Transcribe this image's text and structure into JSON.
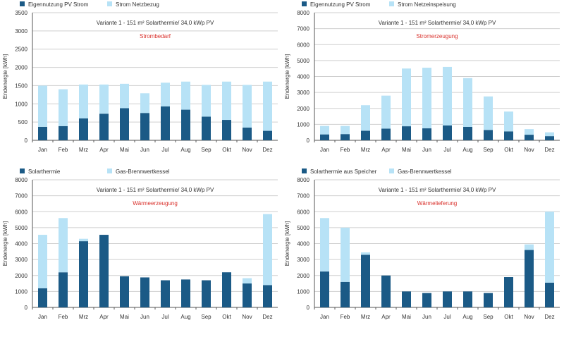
{
  "colors": {
    "dark": "#1b5a86",
    "light": "#b7e2f6",
    "grid": "#cfcfcf",
    "axis": "#555555",
    "subtitle": "#d9302b",
    "text": "#333333"
  },
  "months": [
    "Jan",
    "Feb",
    "Mrz",
    "Apr",
    "Mai",
    "Jun",
    "Jul",
    "Aug",
    "Sep",
    "Okt",
    "Nov",
    "Dez"
  ],
  "chart_data": [
    {
      "type": "bar",
      "stacked": true,
      "title": "Variante 1 - 151 m² Solarthermie/ 34,0 kWp PV",
      "subtitle": "Strombedarf",
      "ylabel": "Endenergie [kWh]",
      "ylim": [
        0,
        3500
      ],
      "yticks": [
        "0",
        "500",
        "1000",
        "1500",
        "2000",
        "2500",
        "3000",
        "3500"
      ],
      "grid": true,
      "legend_position": "top-left",
      "categories": [
        "Jan",
        "Feb",
        "Mrz",
        "Apr",
        "Mai",
        "Jun",
        "Jul",
        "Aug",
        "Sep",
        "Okt",
        "Nov",
        "Dez"
      ],
      "series": [
        {
          "name": "Eigennutzung PV Strom",
          "values": [
            370,
            390,
            600,
            730,
            880,
            750,
            930,
            840,
            650,
            560,
            350,
            260
          ]
        },
        {
          "name": "Strom Netzbezug",
          "values": [
            1130,
            1010,
            930,
            800,
            670,
            540,
            650,
            770,
            870,
            1050,
            1170,
            1350
          ]
        }
      ]
    },
    {
      "type": "bar",
      "stacked": true,
      "title": "Variante 1 - 151 m² Solarthermie/ 34,0 kWp PV",
      "subtitle": "Stromerzeugung",
      "ylabel": "Endenergie [kWh]",
      "ylim": [
        0,
        8000
      ],
      "yticks": [
        "0",
        "1000",
        "2000",
        "3000",
        "4000",
        "5000",
        "6000",
        "7000",
        "8000"
      ],
      "grid": true,
      "legend_position": "top-left",
      "categories": [
        "Jan",
        "Feb",
        "Mrz",
        "Apr",
        "Mai",
        "Jun",
        "Jul",
        "Aug",
        "Sep",
        "Okt",
        "Nov",
        "Dez"
      ],
      "series": [
        {
          "name": "Eigennutzung PV Strom",
          "values": [
            370,
            390,
            600,
            730,
            880,
            750,
            930,
            840,
            650,
            560,
            350,
            260
          ]
        },
        {
          "name": "Strom Netzeinspeisung",
          "values": [
            530,
            510,
            1600,
            2070,
            3620,
            3800,
            3670,
            3060,
            2100,
            1240,
            350,
            240
          ]
        }
      ]
    },
    {
      "type": "bar",
      "stacked": true,
      "title": "Variante 1 - 151 m² Solarthermie/ 34,0 kWp PV",
      "subtitle": "Wärmeerzeugung",
      "ylabel": "Endenergie [kWh]",
      "ylim": [
        0,
        8000
      ],
      "yticks": [
        "0",
        "1000",
        "2000",
        "3000",
        "4000",
        "5000",
        "6000",
        "7000",
        "8000"
      ],
      "grid": true,
      "legend_position": "top-left",
      "categories": [
        "Jan",
        "Feb",
        "Mrz",
        "Apr",
        "Mai",
        "Jun",
        "Jul",
        "Aug",
        "Sep",
        "Okt",
        "Nov",
        "Dez"
      ],
      "series": [
        {
          "name": "Solarthermie",
          "values": [
            1200,
            2200,
            4150,
            4550,
            1950,
            1880,
            1700,
            1750,
            1700,
            2200,
            1500,
            1400
          ]
        },
        {
          "name": "Gas-Brennwertkessel",
          "values": [
            3350,
            3400,
            150,
            0,
            0,
            0,
            0,
            0,
            0,
            0,
            330,
            4450
          ]
        }
      ]
    },
    {
      "type": "bar",
      "stacked": true,
      "title": "Variante 1 - 151 m² Solarthermie/ 34,0 kWp PV",
      "subtitle": "Wärmelieferung",
      "ylabel": "Endenergie [kWh]",
      "ylim": [
        0,
        8000
      ],
      "yticks": [
        "0",
        "1000",
        "2000",
        "3000",
        "4000",
        "5000",
        "6000",
        "7000",
        "8000"
      ],
      "grid": true,
      "legend_position": "top-left",
      "categories": [
        "Jan",
        "Feb",
        "Mrz",
        "Apr",
        "Mai",
        "Jun",
        "Jul",
        "Aug",
        "Sep",
        "Okt",
        "Nov",
        "Dez"
      ],
      "series": [
        {
          "name": "Solarthermie aus Speicher",
          "values": [
            2250,
            1600,
            3300,
            2000,
            1000,
            900,
            1000,
            1000,
            900,
            1900,
            3600,
            1550
          ]
        },
        {
          "name": "Gas-Brennwertkessel",
          "values": [
            3350,
            3400,
            150,
            0,
            0,
            0,
            0,
            0,
            0,
            0,
            350,
            4450
          ]
        }
      ]
    }
  ]
}
